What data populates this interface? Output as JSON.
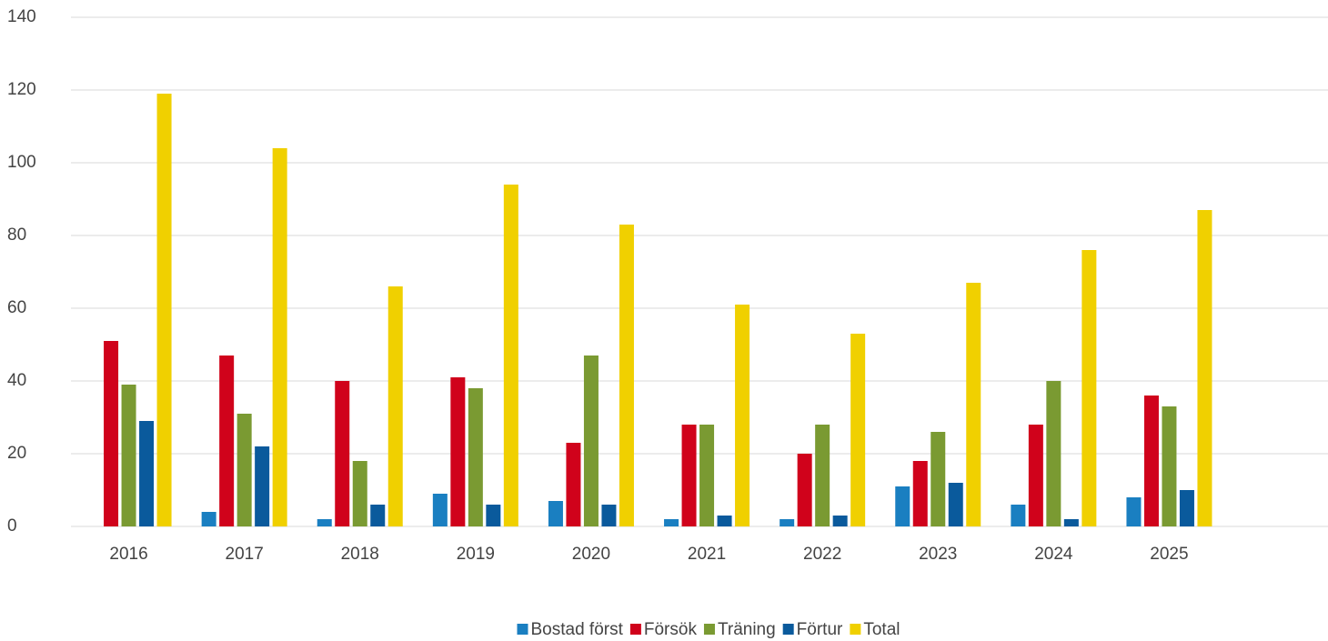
{
  "chart_data": {
    "type": "bar",
    "categories": [
      "2016",
      "2017",
      "2018",
      "2019",
      "2020",
      "2021",
      "2022",
      "2023",
      "2024",
      "2025"
    ],
    "series": [
      {
        "name": "Bostad först",
        "color": "#1a7fc1",
        "values": [
          0,
          4,
          2,
          9,
          7,
          2,
          2,
          11,
          6,
          8
        ]
      },
      {
        "name": "Försök",
        "color": "#d0021b",
        "values": [
          51,
          47,
          40,
          41,
          23,
          28,
          20,
          18,
          28,
          36
        ]
      },
      {
        "name": "Träning",
        "color": "#7a9a32",
        "values": [
          39,
          31,
          18,
          38,
          47,
          28,
          28,
          26,
          40,
          33
        ]
      },
      {
        "name": "Förtur",
        "color": "#0a5a9c",
        "values": [
          29,
          22,
          6,
          6,
          6,
          3,
          3,
          12,
          2,
          10
        ]
      },
      {
        "name": "Total",
        "color": "#f0d000",
        "values": [
          119,
          104,
          66,
          94,
          83,
          61,
          53,
          67,
          76,
          87
        ]
      }
    ],
    "ylim": [
      0,
      140
    ],
    "yticks": [
      0,
      20,
      40,
      60,
      80,
      100,
      120,
      140
    ],
    "grid": true,
    "legend": "bottom"
  }
}
